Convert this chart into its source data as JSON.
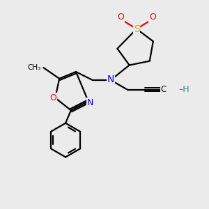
{
  "bg_color": "#ebebeb",
  "atom_colors": {
    "C": "#000000",
    "N": "#0000ff",
    "O": "#ff0000",
    "S": "#ccaa00",
    "H": "#2e8b8b"
  },
  "figsize": [
    3.0,
    3.0
  ],
  "dpi": 100,
  "lw": 1.6
}
